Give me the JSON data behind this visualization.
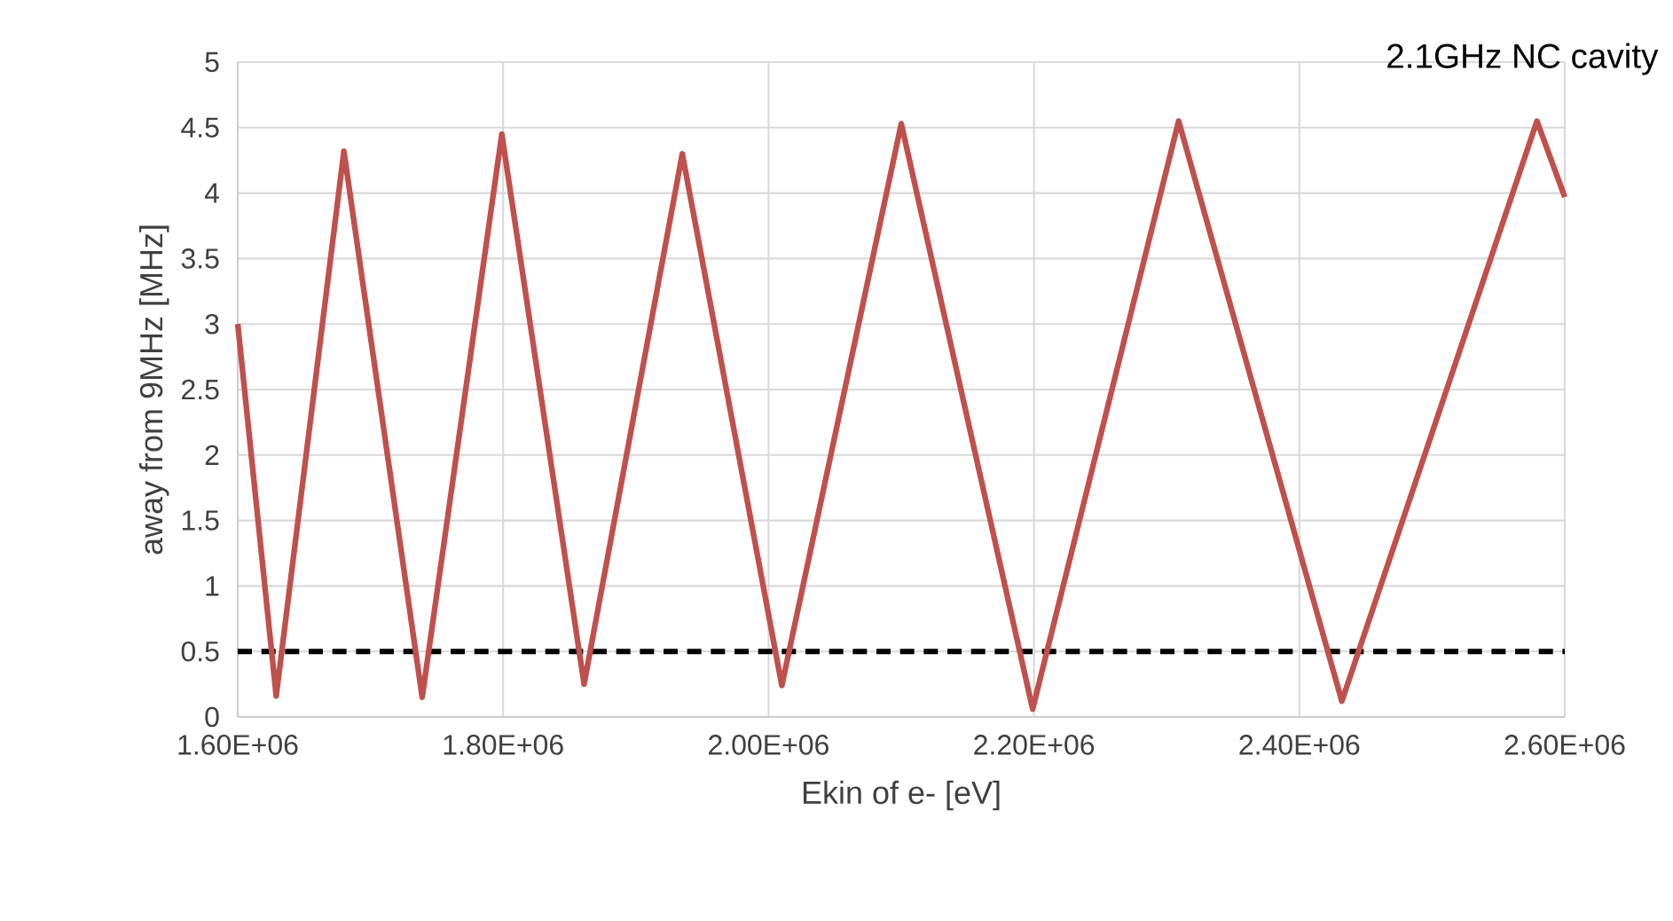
{
  "chart_data": {
    "type": "line",
    "xlabel": "Ekin of e- [eV]",
    "ylabel": "away from 9MHz [MHz]",
    "annotations": [
      "2.1GHz NC cavity"
    ],
    "x": [
      1600000,
      1629000,
      1680000,
      1739000,
      1799000,
      1861000,
      1935000,
      2010000,
      2100000,
      2199000,
      2309000,
      2432000,
      2579000,
      2600000
    ],
    "series": [
      {
        "color": "#c0504d",
        "values": [
          3.0,
          0.16,
          4.32,
          0.15,
          4.45,
          0.25,
          4.3,
          0.24,
          4.53,
          0.06,
          4.55,
          0.12,
          4.55,
          3.97
        ]
      }
    ],
    "xlim": [
      1600000,
      2600000
    ],
    "ylim": [
      0,
      5
    ],
    "xticks": [
      {
        "value": 1600000,
        "label": "1.60E+06"
      },
      {
        "value": 1800000,
        "label": "1.80E+06"
      },
      {
        "value": 2000000,
        "label": "2.00E+06"
      },
      {
        "value": 2200000,
        "label": "2.20E+06"
      },
      {
        "value": 2400000,
        "label": "2.40E+06"
      },
      {
        "value": 2600000,
        "label": "2.60E+06"
      }
    ],
    "yticks": [
      0,
      0.5,
      1,
      1.5,
      2,
      2.5,
      3,
      3.5,
      4,
      4.5,
      5
    ],
    "ref_lines": [
      {
        "axis": "y",
        "value": 0.5,
        "color": "#000000",
        "line_style": "dashed"
      }
    ],
    "grid": true
  }
}
